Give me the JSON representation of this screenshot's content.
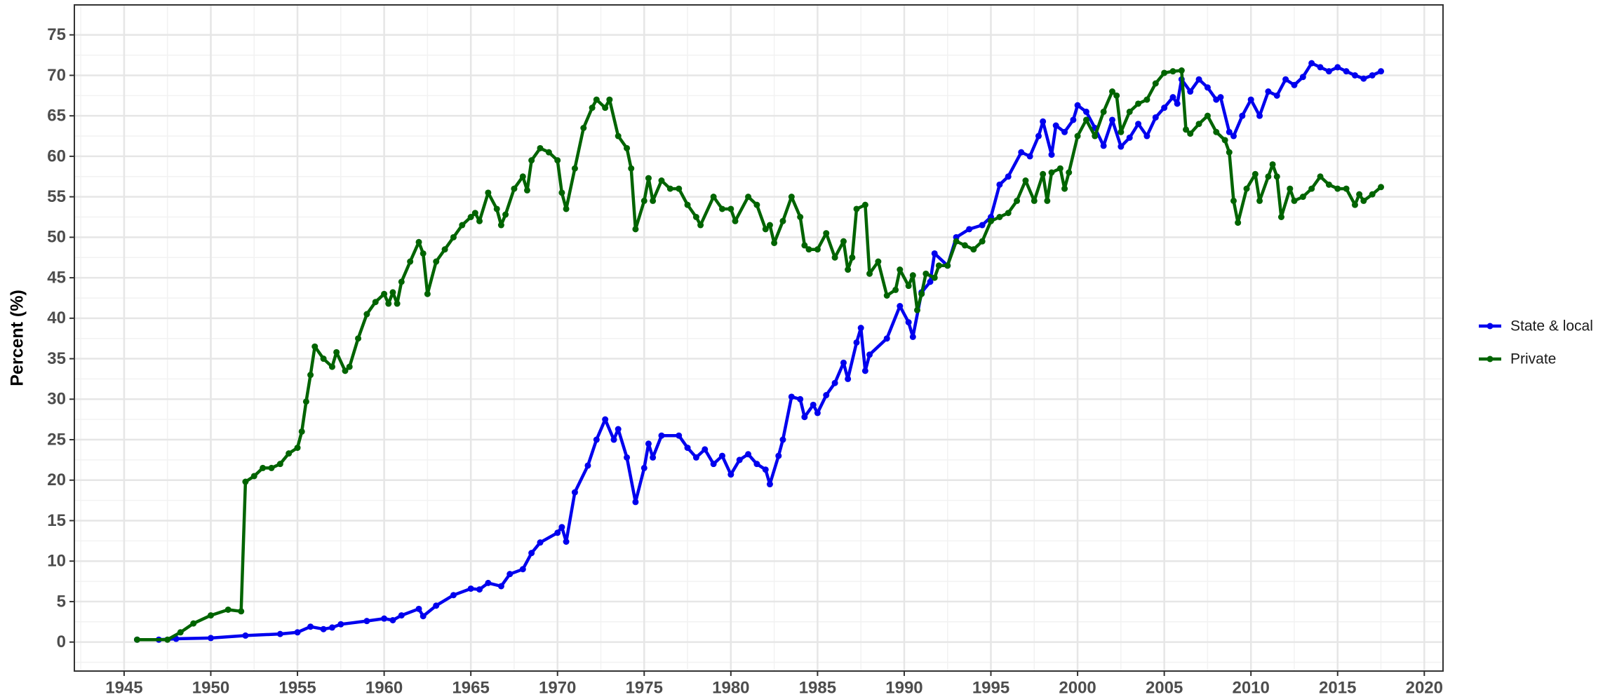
{
  "chart_data": {
    "type": "line",
    "ylabel": "Percent (%)",
    "grid": true,
    "legend": "right",
    "xlim": [
      1942.13,
      2021.08
    ],
    "ylim": [
      -3.58,
      78.7
    ],
    "xticks": [
      1945,
      1950,
      1955,
      1960,
      1965,
      1970,
      1975,
      1980,
      1985,
      1990,
      1995,
      2000,
      2005,
      2010,
      2015,
      2020
    ],
    "yticks": [
      0,
      5,
      10,
      15,
      20,
      25,
      30,
      35,
      40,
      45,
      50,
      55,
      60,
      65,
      70,
      75
    ],
    "series": [
      {
        "name": "State & local",
        "color": "#0000ee",
        "x": [
          1945.75,
          1947,
          1948,
          1950,
          1952,
          1954,
          1955,
          1955.75,
          1956.5,
          1957,
          1957.5,
          1959,
          1960,
          1960.5,
          1961,
          1962,
          1962.25,
          1963,
          1964,
          1965,
          1965.5,
          1966,
          1966.75,
          1967.25,
          1968,
          1968.5,
          1969,
          1970,
          1970.25,
          1970.5,
          1971,
          1971.75,
          1972.25,
          1972.75,
          1973.25,
          1973.5,
          1974,
          1974.5,
          1975,
          1975.25,
          1975.5,
          1976,
          1977,
          1977.5,
          1978,
          1978.5,
          1979,
          1979.5,
          1980,
          1980.5,
          1981,
          1981.5,
          1982,
          1982.25,
          1982.75,
          1983,
          1983.5,
          1984,
          1984.25,
          1984.75,
          1985,
          1985.5,
          1986,
          1986.5,
          1986.75,
          1987.25,
          1987.5,
          1987.75,
          1988,
          1989,
          1989.75,
          1990.25,
          1990.5,
          1991,
          1991.5,
          1991.75,
          1992.5,
          1993,
          1993.75,
          1994.5,
          1995,
          1995.5,
          1996,
          1996.75,
          1997.25,
          1997.75,
          1998,
          1998.5,
          1998.75,
          1999.25,
          1999.75,
          2000,
          2000.5,
          2001,
          2001.5,
          2002,
          2002.5,
          2003,
          2003.5,
          2004,
          2004.5,
          2005,
          2005.5,
          2005.75,
          2006,
          2006.5,
          2007,
          2007.5,
          2008,
          2008.25,
          2008.75,
          2009,
          2009.5,
          2010,
          2010.5,
          2011,
          2011.5,
          2012,
          2012.5,
          2013,
          2013.5,
          2014,
          2014.5,
          2015,
          2015.5,
          2016,
          2016.5,
          2017,
          2017.5
        ],
        "values": [
          0.3,
          0.3,
          0.4,
          0.5,
          0.8,
          1.0,
          1.2,
          1.9,
          1.6,
          1.8,
          2.2,
          2.6,
          2.9,
          2.7,
          3.3,
          4.1,
          3.2,
          4.5,
          5.8,
          6.6,
          6.5,
          7.3,
          6.9,
          8.4,
          9.0,
          11.0,
          12.3,
          13.5,
          14.2,
          12.4,
          18.5,
          21.8,
          25.0,
          27.5,
          25.0,
          26.3,
          22.8,
          17.3,
          21.5,
          24.5,
          22.8,
          25.5,
          25.5,
          24.0,
          22.8,
          23.8,
          22.0,
          23.0,
          20.7,
          22.5,
          23.2,
          22.0,
          21.3,
          19.5,
          23.0,
          25.0,
          30.3,
          30.0,
          27.8,
          29.3,
          28.3,
          30.5,
          32.0,
          34.5,
          32.5,
          37.0,
          38.8,
          33.5,
          35.5,
          37.5,
          41.5,
          39.5,
          37.7,
          43.2,
          44.5,
          48.0,
          46.5,
          50.0,
          51.0,
          51.5,
          52.5,
          56.5,
          57.5,
          60.5,
          60.0,
          62.5,
          64.3,
          60.2,
          63.8,
          63.0,
          64.5,
          66.3,
          65.5,
          63.5,
          61.3,
          64.5,
          61.2,
          62.3,
          64.0,
          62.5,
          64.8,
          66.0,
          67.3,
          66.5,
          69.5,
          68.0,
          69.5,
          68.5,
          67.0,
          67.3,
          63.0,
          62.5,
          65.0,
          67.0,
          65.0,
          68.0,
          67.5,
          69.5,
          68.8,
          69.8,
          71.5,
          71.0,
          70.5,
          71.0,
          70.5,
          70.0,
          69.6,
          70.0,
          70.5
        ]
      },
      {
        "name": "Private",
        "color": "#006400",
        "x": [
          1945.75,
          1947.5,
          1948.25,
          1949,
          1950,
          1951,
          1951.75,
          1952,
          1952.5,
          1953,
          1953.5,
          1954,
          1954.5,
          1955,
          1955.25,
          1955.5,
          1955.75,
          1956,
          1956.5,
          1957,
          1957.25,
          1957.75,
          1958,
          1958.5,
          1959,
          1959.5,
          1960,
          1960.25,
          1960.5,
          1960.75,
          1961,
          1961.5,
          1962,
          1962.25,
          1962.5,
          1963,
          1963.5,
          1964,
          1964.5,
          1965,
          1965.25,
          1965.5,
          1966,
          1966.5,
          1966.75,
          1967,
          1967.5,
          1968,
          1968.25,
          1968.5,
          1969,
          1969.5,
          1970,
          1970.25,
          1970.5,
          1971,
          1971.5,
          1972,
          1972.25,
          1972.75,
          1973,
          1973.5,
          1974,
          1974.25,
          1974.5,
          1975,
          1975.25,
          1975.5,
          1976,
          1976.5,
          1977,
          1977.5,
          1978,
          1978.25,
          1979,
          1979.5,
          1980,
          1980.25,
          1981,
          1981.5,
          1982,
          1982.25,
          1982.5,
          1983,
          1983.5,
          1984,
          1984.25,
          1984.5,
          1985,
          1985.5,
          1986,
          1986.5,
          1986.75,
          1987,
          1987.25,
          1987.75,
          1988,
          1988.5,
          1989,
          1989.5,
          1989.75,
          1990.25,
          1990.5,
          1990.75,
          1991,
          1991.25,
          1991.75,
          1992,
          1992.5,
          1993,
          1993.5,
          1994,
          1994.5,
          1995,
          1995.5,
          1996,
          1996.5,
          1997,
          1997.5,
          1998,
          1998.25,
          1998.5,
          1999,
          1999.25,
          1999.5,
          2000,
          2000.5,
          2001,
          2001.5,
          2002,
          2002.25,
          2002.5,
          2003,
          2003.5,
          2004,
          2004.5,
          2005,
          2005.5,
          2006,
          2006.25,
          2006.5,
          2007,
          2007.5,
          2008,
          2008.5,
          2008.75,
          2009,
          2009.25,
          2009.75,
          2010.25,
          2010.5,
          2011,
          2011.25,
          2011.5,
          2011.75,
          2012.25,
          2012.5,
          2013,
          2013.5,
          2014,
          2014.5,
          2015,
          2015.5,
          2016,
          2016.25,
          2016.5,
          2017,
          2017.5
        ],
        "values": [
          0.3,
          0.3,
          1.2,
          2.3,
          3.3,
          4.0,
          3.8,
          19.8,
          20.5,
          21.5,
          21.5,
          22.0,
          23.3,
          24.0,
          26.0,
          29.7,
          33.0,
          36.5,
          35.0,
          34.0,
          35.8,
          33.5,
          34.0,
          37.5,
          40.5,
          42.0,
          43.0,
          41.8,
          43.2,
          41.8,
          44.5,
          47.0,
          49.4,
          48.0,
          43.0,
          47.0,
          48.5,
          50.0,
          51.5,
          52.5,
          53.0,
          52.0,
          55.5,
          53.5,
          51.5,
          52.8,
          56.0,
          57.5,
          55.8,
          59.5,
          61.0,
          60.5,
          59.5,
          55.5,
          53.5,
          58.5,
          63.5,
          66.0,
          67.0,
          66.0,
          67.0,
          62.5,
          61.0,
          58.5,
          51.0,
          54.5,
          57.3,
          54.5,
          57.0,
          56.0,
          56.0,
          54.0,
          52.5,
          51.5,
          55.0,
          53.5,
          53.5,
          52.0,
          55.0,
          54.0,
          51.0,
          51.5,
          49.3,
          52.0,
          55.0,
          52.5,
          49.0,
          48.5,
          48.5,
          50.5,
          47.5,
          49.5,
          46.0,
          47.5,
          53.5,
          54.0,
          45.5,
          47.0,
          42.8,
          43.5,
          46.0,
          44.0,
          45.3,
          41.0,
          43.0,
          45.5,
          45.0,
          46.5,
          46.5,
          49.5,
          49.0,
          48.5,
          49.5,
          52.0,
          52.5,
          53.0,
          54.5,
          57.0,
          54.5,
          57.8,
          54.5,
          58.0,
          58.5,
          56.0,
          58.0,
          62.5,
          64.5,
          62.5,
          65.5,
          68.0,
          67.5,
          63.0,
          65.5,
          66.5,
          67.0,
          69.0,
          70.3,
          70.5,
          70.6,
          63.3,
          62.8,
          64.0,
          65.0,
          63.0,
          62.0,
          60.5,
          54.5,
          51.8,
          56.0,
          57.8,
          54.5,
          57.5,
          59.0,
          57.5,
          52.5,
          56.0,
          54.5,
          55.0,
          56.0,
          57.5,
          56.5,
          56.0,
          56.0,
          54.0,
          55.3,
          54.5,
          55.3,
          56.2
        ]
      }
    ]
  }
}
